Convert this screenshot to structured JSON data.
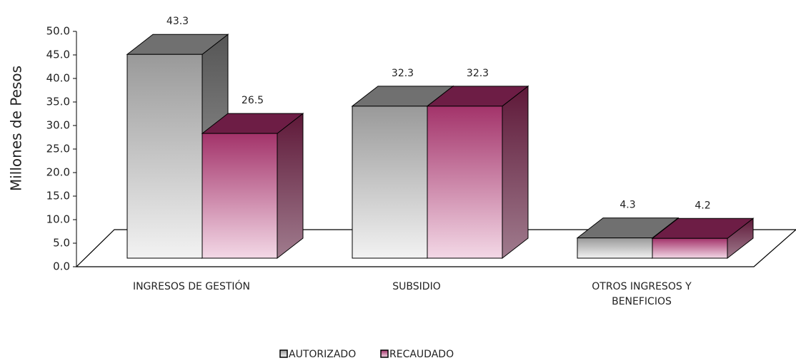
{
  "chart_data": {
    "type": "bar3d",
    "y_axis_label": "Millones de Pesos",
    "categories": [
      "INGRESOS DE GESTIÓN",
      "SUBSIDIO",
      "OTROS INGRESOS Y BENEFICIOS"
    ],
    "series": [
      {
        "name": "AUTORIZADO",
        "color": "#9a9a9a",
        "values": [
          43.3,
          32.3,
          4.3
        ]
      },
      {
        "name": "RECAUDADO",
        "color": "#a3336a",
        "values": [
          26.5,
          32.3,
          4.2
        ]
      }
    ],
    "ylim": [
      0,
      50
    ],
    "yticks": [
      {
        "value": 0,
        "label": "0.0"
      },
      {
        "value": 5,
        "label": "5.0"
      },
      {
        "value": 10,
        "label": "10.0"
      },
      {
        "value": 15,
        "label": "15.0"
      },
      {
        "value": 20,
        "label": "20.0"
      },
      {
        "value": 25,
        "label": "25.0"
      },
      {
        "value": 30,
        "label": "30.0"
      },
      {
        "value": 35,
        "label": "35.0"
      },
      {
        "value": 40,
        "label": "40.0"
      },
      {
        "value": 45,
        "label": "45.0"
      },
      {
        "value": 50,
        "label": "50.0"
      }
    ],
    "legend": "bottom"
  }
}
